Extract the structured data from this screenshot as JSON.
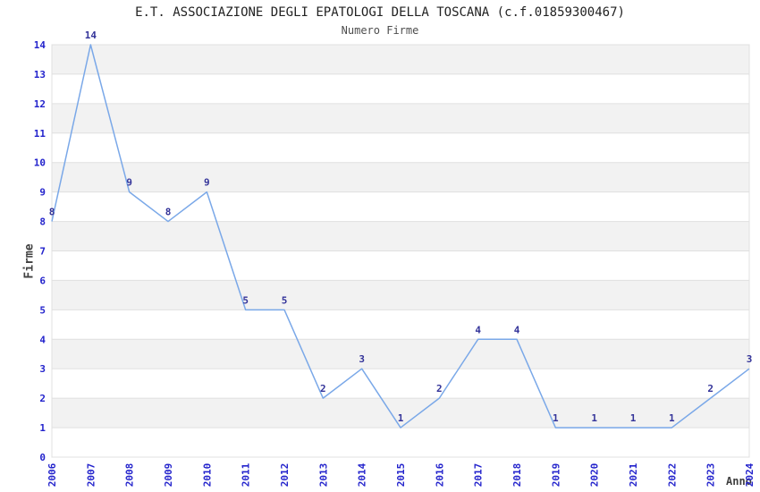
{
  "chart_data": {
    "type": "line",
    "title": "E.T. ASSOCIAZIONE DEGLI EPATOLOGI DELLA TOSCANA (c.f.01859300467)",
    "subtitle": "Numero Firme",
    "xlabel": "Anno",
    "ylabel": "Firme",
    "x": [
      "2006",
      "2007",
      "2008",
      "2009",
      "2010",
      "2011",
      "2012",
      "2013",
      "2014",
      "2015",
      "2016",
      "2017",
      "2018",
      "2019",
      "2020",
      "2021",
      "2022",
      "2023",
      "2024"
    ],
    "values": [
      8,
      14,
      9,
      8,
      9,
      5,
      5,
      2,
      3,
      1,
      2,
      4,
      4,
      1,
      1,
      1,
      1,
      2,
      3
    ],
    "ylim": [
      0,
      14
    ],
    "ytick_step": 1,
    "grid": "horizontal",
    "band_pattern": "alternating horizontal bands between odd and even gridlines",
    "legend": "none",
    "data_labels": "value shown above each point",
    "colors": {
      "line": "#7aa8e8",
      "tick_label": "#2323cc",
      "data_label": "#333399",
      "band": "#f2f2f2",
      "gridline": "#e0e0e0",
      "title_text": "#222222",
      "subtitle_text": "#4d4d4d",
      "axis_title": "#404040",
      "background": "#ffffff"
    }
  }
}
